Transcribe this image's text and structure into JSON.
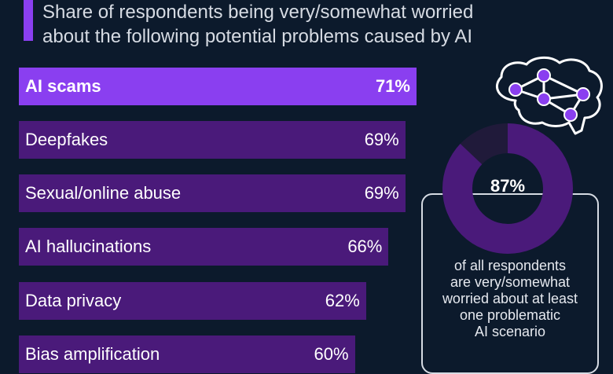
{
  "subtitle": {
    "line1": "Share of respondents being very/somewhat worried",
    "line2": "about the following potential problems caused by AI"
  },
  "colors": {
    "background": "#0c1a2c",
    "highlight_bar": "#8a3ff0",
    "bar": "#4a1a7a",
    "accent": "#8a3ff0",
    "donut_main": "#4a1a7a",
    "donut_rest": "#201a3a"
  },
  "chart_data": {
    "type": "bar",
    "orientation": "horizontal",
    "categories": [
      "AI scams",
      "Deepfakes",
      "Sexual/online abuse",
      "AI hallucinations",
      "Data privacy",
      "Bias amplification"
    ],
    "values": [
      71,
      69,
      69,
      66,
      62,
      60
    ],
    "value_labels": [
      "71%",
      "69%",
      "69%",
      "66%",
      "62%",
      "60%"
    ],
    "highlighted": "AI scams",
    "xlim": [
      0,
      100
    ]
  },
  "callout": {
    "value": 87,
    "value_label": "87%",
    "lines": [
      "of all respondents",
      "are very/somewhat",
      "worried about at least",
      "one problematic",
      "AI scenario"
    ]
  }
}
